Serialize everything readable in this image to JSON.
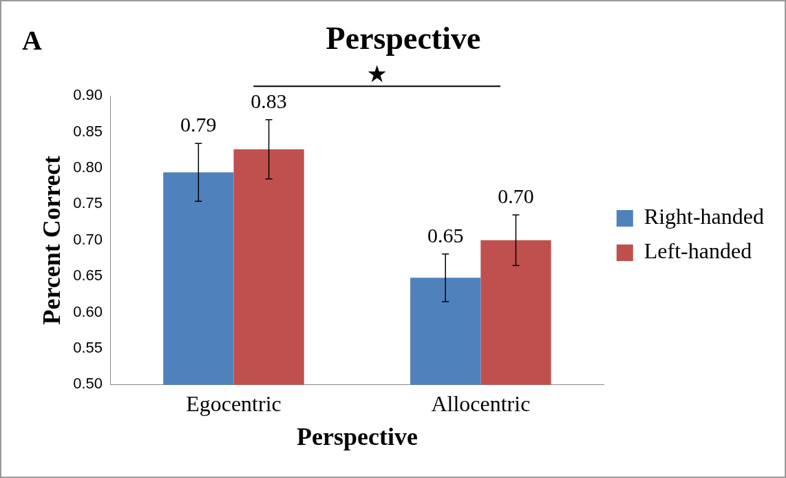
{
  "chart_data": {
    "type": "bar",
    "title": "Perspective",
    "xlabel": "Perspective",
    "ylabel": "Percent Correct",
    "categories": [
      "Egocentric",
      "Allocentric"
    ],
    "series": [
      {
        "name": "Right-handed",
        "color": "#4f81bd",
        "values": [
          0.794,
          0.648
        ],
        "errors": [
          0.04,
          0.033
        ],
        "value_labels": [
          "0.79",
          "0.65"
        ]
      },
      {
        "name": "Left-handed",
        "color": "#c0504d",
        "values": [
          0.826,
          0.7
        ],
        "errors": [
          0.041,
          0.035
        ],
        "value_labels": [
          "0.83",
          "0.70"
        ]
      }
    ],
    "ylim": [
      0.5,
      0.9
    ],
    "yticks": [
      {
        "value": 0.5,
        "label": "0.50"
      },
      {
        "value": 0.55,
        "label": "0.55"
      },
      {
        "value": 0.6,
        "label": "0.60"
      },
      {
        "value": 0.65,
        "label": "0.65"
      },
      {
        "value": 0.7,
        "label": "0.70"
      },
      {
        "value": 0.75,
        "label": "0.75"
      },
      {
        "value": 0.8,
        "label": "0.80"
      },
      {
        "value": 0.85,
        "label": "0.85"
      },
      {
        "value": 0.9,
        "label": "0.90"
      }
    ],
    "grid": false,
    "legend": "right",
    "annotations": [
      "A",
      "★"
    ]
  }
}
